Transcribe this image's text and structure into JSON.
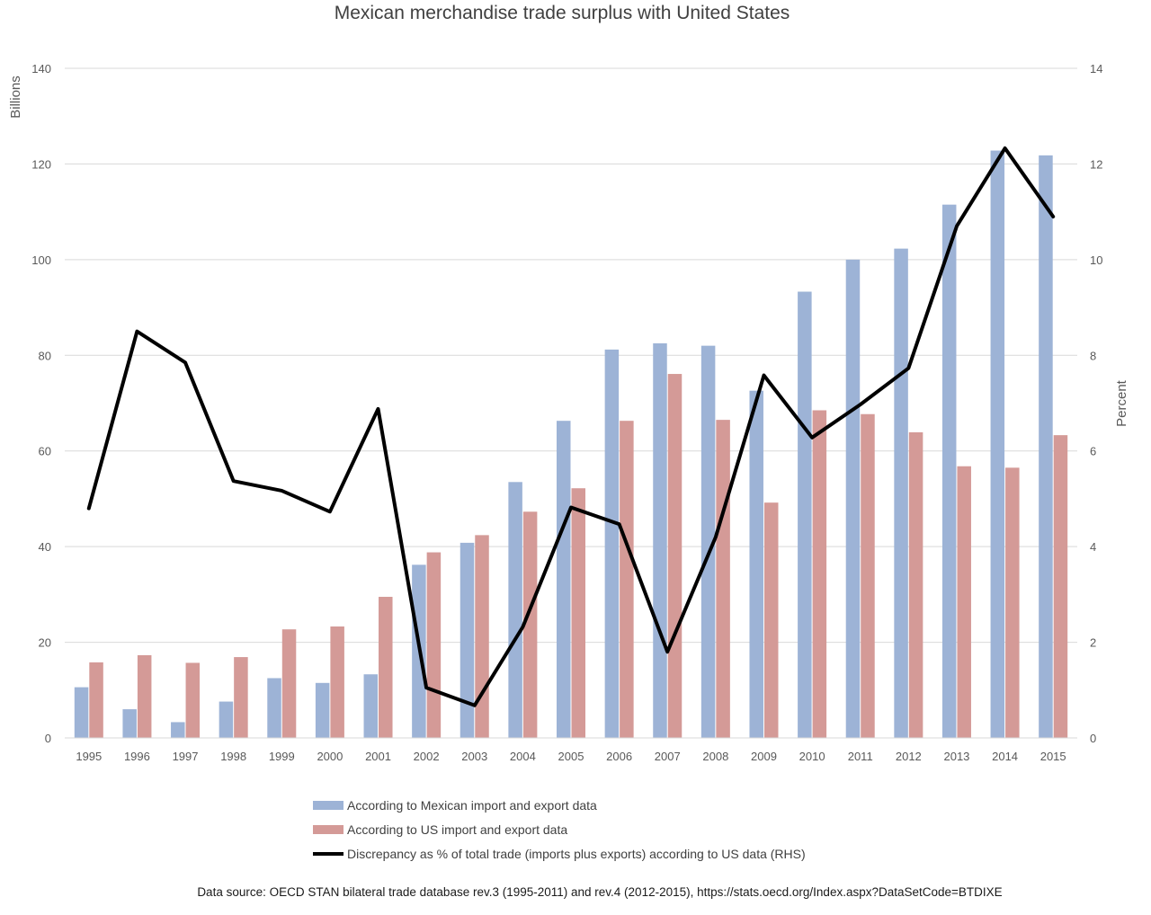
{
  "chart_data": {
    "type": "bar",
    "title": "Mexican merchandise trade surplus with United States",
    "ylabel": "Billions",
    "y2label": "Percent",
    "ylim": [
      0,
      140
    ],
    "y2lim": [
      0,
      14
    ],
    "yticks": [
      0,
      20,
      40,
      60,
      80,
      100,
      120,
      140
    ],
    "y2ticks": [
      0,
      2,
      4,
      6,
      8,
      10,
      12,
      14
    ],
    "grid": true,
    "legend_position": "bottom",
    "categories": [
      "1995",
      "1996",
      "1997",
      "1998",
      "1999",
      "2000",
      "2001",
      "2002",
      "2003",
      "2004",
      "2005",
      "2006",
      "2007",
      "2008",
      "2009",
      "2010",
      "2011",
      "2012",
      "2013",
      "2014",
      "2015"
    ],
    "series": [
      {
        "name": "According to Mexican import and export data",
        "type": "bar",
        "axis": "left",
        "color": "#9db3d6",
        "values": [
          10.6,
          6.0,
          3.3,
          7.6,
          12.5,
          11.5,
          13.3,
          36.2,
          40.8,
          53.5,
          66.3,
          81.2,
          82.5,
          82.0,
          72.6,
          93.3,
          100.0,
          102.3,
          111.5,
          122.8,
          121.8
        ]
      },
      {
        "name": "According to US import and export data",
        "type": "bar",
        "axis": "left",
        "color": "#d49a97",
        "values": [
          15.8,
          17.3,
          15.7,
          16.9,
          22.7,
          23.3,
          29.5,
          38.8,
          42.4,
          47.3,
          52.2,
          66.3,
          76.1,
          66.5,
          49.2,
          68.5,
          67.7,
          63.9,
          56.8,
          56.5,
          63.3
        ]
      },
      {
        "name": "Discrepancy as % of total trade (imports plus exports) according to US data (RHS)",
        "type": "line",
        "axis": "right",
        "color": "#000000",
        "values": [
          4.8,
          8.5,
          7.85,
          5.37,
          5.17,
          4.73,
          6.88,
          1.05,
          0.68,
          2.32,
          4.82,
          4.47,
          1.8,
          4.2,
          7.58,
          6.28,
          6.97,
          7.73,
          10.7,
          12.33,
          10.9
        ]
      }
    ],
    "source": "Data source: OECD STAN bilateral trade database rev.3 (1995-2011)  and rev.4 (2012-2015),  https://stats.oecd.org/Index.aspx?DataSetCode=BTDIXE"
  }
}
